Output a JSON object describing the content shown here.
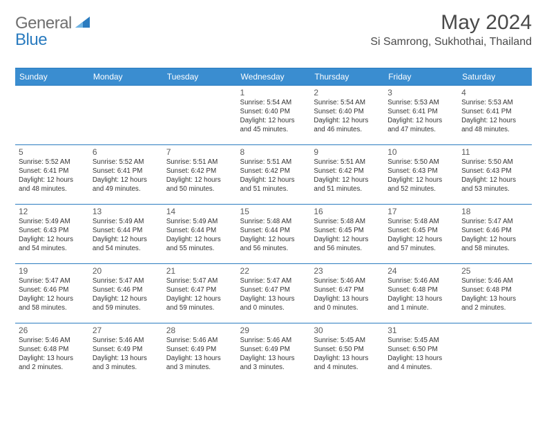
{
  "brand": {
    "part1": "General",
    "part2": "Blue"
  },
  "title": "May 2024",
  "location": "Si Samrong, Sukhothai, Thailand",
  "colors": {
    "header_bg": "#3a8dd0",
    "border": "#2a7bbf",
    "title_color": "#4a4a4a",
    "brand_gray": "#6f6f6f",
    "brand_blue": "#2a7bbf",
    "text": "#333333"
  },
  "weekdays": [
    "Sunday",
    "Monday",
    "Tuesday",
    "Wednesday",
    "Thursday",
    "Friday",
    "Saturday"
  ],
  "weeks": [
    [
      null,
      null,
      null,
      {
        "d": "1",
        "sr": "5:54 AM",
        "ss": "6:40 PM",
        "dl": "12 hours and 45 minutes."
      },
      {
        "d": "2",
        "sr": "5:54 AM",
        "ss": "6:40 PM",
        "dl": "12 hours and 46 minutes."
      },
      {
        "d": "3",
        "sr": "5:53 AM",
        "ss": "6:41 PM",
        "dl": "12 hours and 47 minutes."
      },
      {
        "d": "4",
        "sr": "5:53 AM",
        "ss": "6:41 PM",
        "dl": "12 hours and 48 minutes."
      }
    ],
    [
      {
        "d": "5",
        "sr": "5:52 AM",
        "ss": "6:41 PM",
        "dl": "12 hours and 48 minutes."
      },
      {
        "d": "6",
        "sr": "5:52 AM",
        "ss": "6:41 PM",
        "dl": "12 hours and 49 minutes."
      },
      {
        "d": "7",
        "sr": "5:51 AM",
        "ss": "6:42 PM",
        "dl": "12 hours and 50 minutes."
      },
      {
        "d": "8",
        "sr": "5:51 AM",
        "ss": "6:42 PM",
        "dl": "12 hours and 51 minutes."
      },
      {
        "d": "9",
        "sr": "5:51 AM",
        "ss": "6:42 PM",
        "dl": "12 hours and 51 minutes."
      },
      {
        "d": "10",
        "sr": "5:50 AM",
        "ss": "6:43 PM",
        "dl": "12 hours and 52 minutes."
      },
      {
        "d": "11",
        "sr": "5:50 AM",
        "ss": "6:43 PM",
        "dl": "12 hours and 53 minutes."
      }
    ],
    [
      {
        "d": "12",
        "sr": "5:49 AM",
        "ss": "6:43 PM",
        "dl": "12 hours and 54 minutes."
      },
      {
        "d": "13",
        "sr": "5:49 AM",
        "ss": "6:44 PM",
        "dl": "12 hours and 54 minutes."
      },
      {
        "d": "14",
        "sr": "5:49 AM",
        "ss": "6:44 PM",
        "dl": "12 hours and 55 minutes."
      },
      {
        "d": "15",
        "sr": "5:48 AM",
        "ss": "6:44 PM",
        "dl": "12 hours and 56 minutes."
      },
      {
        "d": "16",
        "sr": "5:48 AM",
        "ss": "6:45 PM",
        "dl": "12 hours and 56 minutes."
      },
      {
        "d": "17",
        "sr": "5:48 AM",
        "ss": "6:45 PM",
        "dl": "12 hours and 57 minutes."
      },
      {
        "d": "18",
        "sr": "5:47 AM",
        "ss": "6:46 PM",
        "dl": "12 hours and 58 minutes."
      }
    ],
    [
      {
        "d": "19",
        "sr": "5:47 AM",
        "ss": "6:46 PM",
        "dl": "12 hours and 58 minutes."
      },
      {
        "d": "20",
        "sr": "5:47 AM",
        "ss": "6:46 PM",
        "dl": "12 hours and 59 minutes."
      },
      {
        "d": "21",
        "sr": "5:47 AM",
        "ss": "6:47 PM",
        "dl": "12 hours and 59 minutes."
      },
      {
        "d": "22",
        "sr": "5:47 AM",
        "ss": "6:47 PM",
        "dl": "13 hours and 0 minutes."
      },
      {
        "d": "23",
        "sr": "5:46 AM",
        "ss": "6:47 PM",
        "dl": "13 hours and 0 minutes."
      },
      {
        "d": "24",
        "sr": "5:46 AM",
        "ss": "6:48 PM",
        "dl": "13 hours and 1 minute."
      },
      {
        "d": "25",
        "sr": "5:46 AM",
        "ss": "6:48 PM",
        "dl": "13 hours and 2 minutes."
      }
    ],
    [
      {
        "d": "26",
        "sr": "5:46 AM",
        "ss": "6:48 PM",
        "dl": "13 hours and 2 minutes."
      },
      {
        "d": "27",
        "sr": "5:46 AM",
        "ss": "6:49 PM",
        "dl": "13 hours and 3 minutes."
      },
      {
        "d": "28",
        "sr": "5:46 AM",
        "ss": "6:49 PM",
        "dl": "13 hours and 3 minutes."
      },
      {
        "d": "29",
        "sr": "5:46 AM",
        "ss": "6:49 PM",
        "dl": "13 hours and 3 minutes."
      },
      {
        "d": "30",
        "sr": "5:45 AM",
        "ss": "6:50 PM",
        "dl": "13 hours and 4 minutes."
      },
      {
        "d": "31",
        "sr": "5:45 AM",
        "ss": "6:50 PM",
        "dl": "13 hours and 4 minutes."
      },
      null
    ]
  ],
  "labels": {
    "sunrise": "Sunrise: ",
    "sunset": "Sunset: ",
    "daylight": "Daylight: "
  }
}
